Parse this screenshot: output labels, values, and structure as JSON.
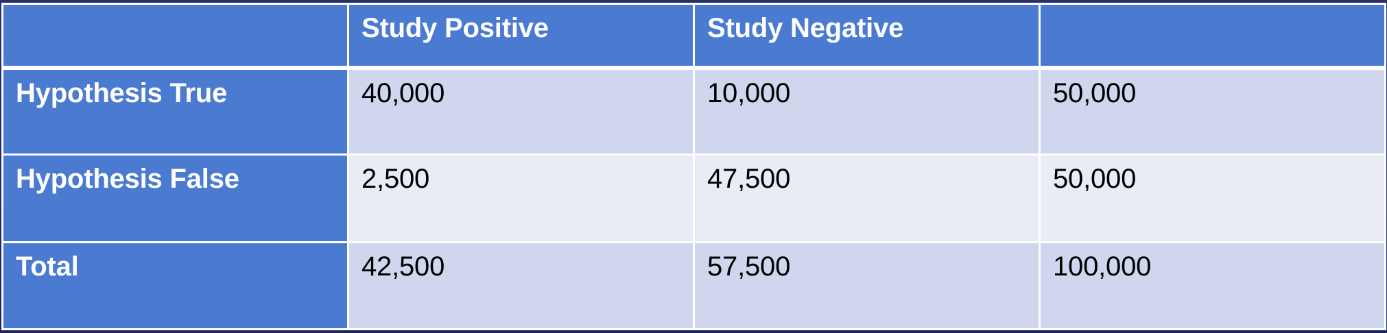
{
  "table": {
    "header": [
      "",
      "Study Positive",
      "Study Negative",
      ""
    ],
    "rows": [
      {
        "label": "Hypothesis True",
        "cells": [
          "40,000",
          "10,000",
          "50,000"
        ]
      },
      {
        "label": "Hypothesis False",
        "cells": [
          "2,500",
          "47,500",
          "50,000"
        ]
      },
      {
        "label": "Total",
        "cells": [
          "42,500",
          "57,500",
          "100,000"
        ]
      }
    ]
  },
  "colors": {
    "header_background": "#4a7bd1",
    "band_dark": "#cfd6ee",
    "band_light": "#e9ebf5",
    "slide_background": "#2a2f6e"
  }
}
